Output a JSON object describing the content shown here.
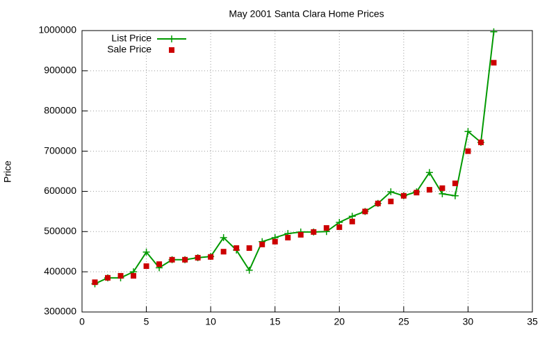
{
  "chart_data": {
    "type": "line",
    "title": "May 2001 Santa Clara Home Prices",
    "y_label": "Price",
    "xlim": [
      0,
      35
    ],
    "xticks": [
      0,
      5,
      10,
      15,
      20,
      25,
      30,
      35
    ],
    "ylim": [
      300000,
      1000000
    ],
    "yticks": [
      300000,
      400000,
      500000,
      600000,
      700000,
      800000,
      900000,
      1000000
    ],
    "grid": true,
    "legend": "top-left",
    "x": [
      1,
      2,
      3,
      4,
      5,
      6,
      7,
      8,
      9,
      10,
      11,
      12,
      13,
      14,
      15,
      16,
      17,
      18,
      19,
      20,
      21,
      22,
      23,
      24,
      25,
      26,
      27,
      28,
      29,
      30,
      31,
      32
    ],
    "series": [
      {
        "name": "List Price",
        "color": "#009900",
        "style": "linespoints",
        "values": [
          370000,
          385000,
          385000,
          400000,
          449000,
          410000,
          430000,
          430000,
          435000,
          438000,
          485000,
          454000,
          404000,
          475000,
          485000,
          495000,
          499000,
          499000,
          500000,
          523000,
          538000,
          550000,
          570000,
          599000,
          589000,
          599000,
          647000,
          594000,
          589000,
          749000,
          722000,
          997000
        ]
      },
      {
        "name": "Sale Price",
        "color": "#cc0000",
        "style": "points",
        "values": [
          374000,
          385000,
          390000,
          390000,
          414000,
          419000,
          430000,
          430000,
          435000,
          437000,
          450000,
          459000,
          459000,
          468000,
          475000,
          485000,
          492000,
          499000,
          509000,
          511000,
          525000,
          550000,
          570000,
          575000,
          589000,
          597000,
          604000,
          608000,
          620000,
          700000,
          722000,
          920000
        ]
      }
    ]
  }
}
